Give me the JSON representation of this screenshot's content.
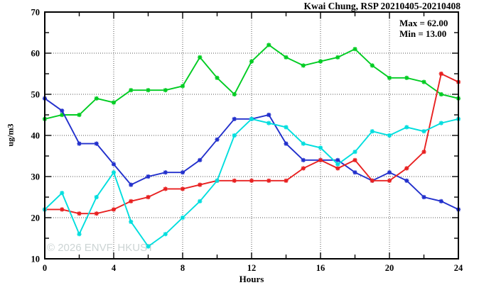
{
  "header": {
    "title": "Kwai Chung, RSP 20210405-20210408"
  },
  "annotations": {
    "max_label": "Max = 62.00",
    "min_label": "Min = 13.00",
    "watermark": "© 2026 ENVF, HKUST"
  },
  "axes": {
    "ylabel": "ug/m3",
    "xlabel": "Hours"
  },
  "colors": {
    "green_series": "#00cc22",
    "blue_series": "#2230cc",
    "red_series": "#e82020",
    "cyan_series": "#00dede",
    "axis": "#000000",
    "grid": "#555555",
    "background": "#ffffff",
    "watermark": "#bbc5c5"
  },
  "chart_data": {
    "type": "line",
    "title": "Kwai Chung, RSP 20210405-20210408",
    "xlabel": "Hours",
    "ylabel": "ug/m3",
    "xlim": [
      0,
      24
    ],
    "ylim": [
      10,
      70
    ],
    "grid": true,
    "legend_position": "none",
    "stats": {
      "max": 62.0,
      "min": 13.0
    },
    "x": [
      0,
      1,
      2,
      3,
      4,
      5,
      6,
      7,
      8,
      9,
      10,
      11,
      12,
      13,
      14,
      15,
      16,
      17,
      18,
      19,
      20,
      21,
      22,
      23,
      24
    ],
    "x_major_ticks": [
      0,
      4,
      8,
      12,
      16,
      20,
      24
    ],
    "x_minor_ticks": [
      2,
      6,
      10,
      14,
      18,
      22
    ],
    "y_major_ticks": [
      10,
      20,
      30,
      40,
      50,
      60,
      70
    ],
    "y_minor_ticks": [
      15,
      25,
      35,
      45,
      55,
      65
    ],
    "x_gridlines": [
      4,
      8,
      12,
      16,
      20
    ],
    "y_gridlines": [
      20,
      30,
      40,
      50,
      60
    ],
    "series": [
      {
        "name": "green",
        "color": "#00cc22",
        "values": [
          44,
          45,
          45,
          49,
          48,
          51,
          51,
          51,
          52,
          59,
          54,
          50,
          58,
          62,
          59,
          57,
          58,
          59,
          61,
          57,
          54,
          54,
          53,
          50,
          49
        ]
      },
      {
        "name": "blue",
        "color": "#2230cc",
        "values": [
          49,
          46,
          38,
          38,
          33,
          28,
          30,
          31,
          31,
          34,
          39,
          44,
          44,
          45,
          38,
          34,
          34,
          34,
          31,
          29,
          31,
          29,
          25,
          24,
          22
        ]
      },
      {
        "name": "red",
        "color": "#e82020",
        "values": [
          22,
          22,
          21,
          21,
          22,
          24,
          25,
          27,
          27,
          28,
          29,
          29,
          29,
          29,
          29,
          32,
          34,
          32,
          34,
          29,
          29,
          32,
          36,
          55,
          53
        ]
      },
      {
        "name": "cyan",
        "color": "#00dede",
        "values": [
          22,
          26,
          16,
          25,
          31,
          19,
          13,
          16,
          20,
          24,
          29,
          40,
          44,
          43,
          42,
          38,
          37,
          33,
          36,
          41,
          40,
          42,
          41,
          43,
          44
        ]
      }
    ]
  }
}
